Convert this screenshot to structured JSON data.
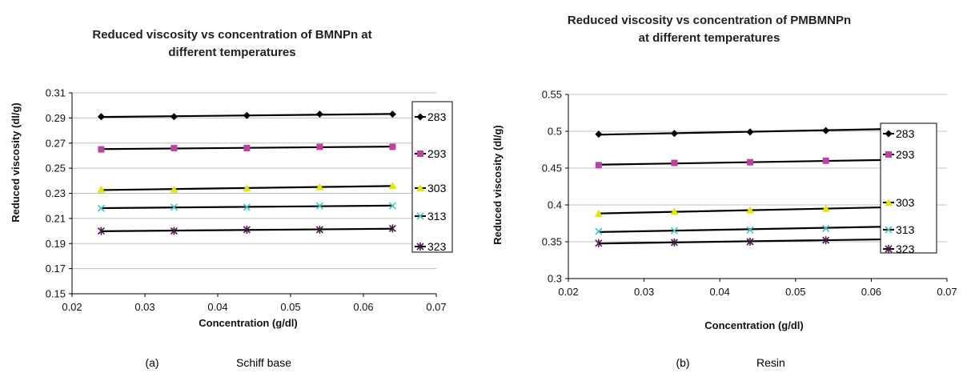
{
  "chart_data": [
    {
      "type": "line",
      "title_lines": [
        "Reduced viscosity vs concentration of BMNPn at",
        "different temperatures"
      ],
      "xlabel": "Concentration  (g/dl)",
      "ylabel": "Reduced viscosity  (dl/g)",
      "xlim": [
        0.02,
        0.07
      ],
      "ylim": [
        0.15,
        0.31
      ],
      "xticks": [
        "0.02",
        "0.03",
        "0.04",
        "0.05",
        "0.06",
        "0.07"
      ],
      "yticks": [
        "0.15",
        "0.17",
        "0.19",
        "0.21",
        "0.23",
        "0.25",
        "0.27",
        "0.29",
        "0.31"
      ],
      "x": [
        0.024,
        0.034,
        0.044,
        0.054,
        0.064
      ],
      "series": [
        {
          "name": "283",
          "values": [
            0.291,
            0.291,
            0.292,
            0.293,
            0.293
          ],
          "color": "#000000",
          "marker": "diamond"
        },
        {
          "name": "293",
          "values": [
            0.265,
            0.266,
            0.266,
            0.267,
            0.267
          ],
          "color": "#c040a0",
          "marker": "square"
        },
        {
          "name": "303",
          "values": [
            0.233,
            0.233,
            0.234,
            0.235,
            0.236
          ],
          "color": "#e6e600",
          "marker": "triangle"
        },
        {
          "name": "313",
          "values": [
            0.218,
            0.219,
            0.219,
            0.22,
            0.22
          ],
          "color": "#33cccc",
          "marker": "x"
        },
        {
          "name": "323",
          "values": [
            0.2,
            0.2,
            0.201,
            0.201,
            0.202
          ],
          "color": "#4a1a4a",
          "marker": "star"
        }
      ],
      "trendline_color": "#000000",
      "grid": "horizontal",
      "legend": "right",
      "caption_label": "(a)",
      "caption_text": "Schiff base"
    },
    {
      "type": "line",
      "title_lines": [
        "Reduced viscosity vs concentration of PMBMNPn",
        "at different temperatures"
      ],
      "xlabel": "Concentration (g/dl)",
      "ylabel": "Reduced viscosity  (dl/g)",
      "xlim": [
        0.02,
        0.07
      ],
      "ylim": [
        0.3,
        0.55
      ],
      "xticks": [
        "0.02",
        "0.03",
        "0.04",
        "0.05",
        "0.06",
        "0.07"
      ],
      "yticks": [
        "0.3",
        "0.35",
        "0.4",
        "0.45",
        "0.5",
        "0.55"
      ],
      "x": [
        0.024,
        0.034,
        0.044,
        0.054,
        0.064
      ],
      "series": [
        {
          "name": "283",
          "values": [
            0.496,
            0.497,
            0.499,
            0.501,
            0.504
          ],
          "color": "#000000",
          "marker": "diamond"
        },
        {
          "name": "293",
          "values": [
            0.454,
            0.457,
            0.458,
            0.46,
            0.461
          ],
          "color": "#c040a0",
          "marker": "square"
        },
        {
          "name": "303",
          "values": [
            0.388,
            0.391,
            0.393,
            0.395,
            0.397
          ],
          "color": "#e6e600",
          "marker": "triangle"
        },
        {
          "name": "313",
          "values": [
            0.364,
            0.365,
            0.366,
            0.368,
            0.372
          ],
          "color": "#33cccc",
          "marker": "x"
        },
        {
          "name": "323",
          "values": [
            0.348,
            0.349,
            0.35,
            0.352,
            0.354
          ],
          "color": "#4a1a4a",
          "marker": "star"
        }
      ],
      "trendline_color": "#000000",
      "grid": "horizontal",
      "legend": "right",
      "caption_label": "(b)",
      "caption_text": "Resin"
    }
  ]
}
